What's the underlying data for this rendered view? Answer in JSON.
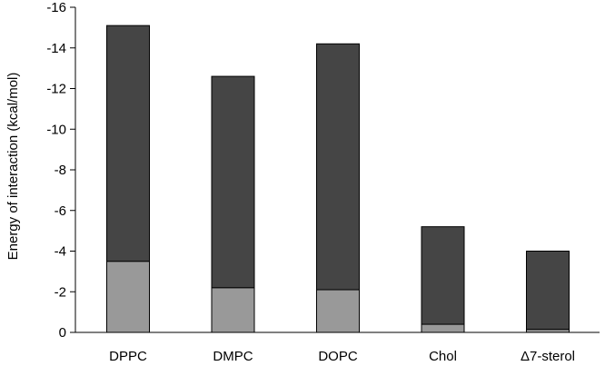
{
  "chart_data": {
    "type": "bar",
    "stacked": true,
    "title": "",
    "xlabel": "",
    "ylabel": "Energy of interaction (kcal/mol)",
    "ylim": [
      0,
      -16
    ],
    "yticks": [
      0,
      -2,
      -4,
      -6,
      -8,
      -10,
      -12,
      -14,
      -16
    ],
    "ytick_labels": [
      "0",
      "-2",
      "-4",
      "-6",
      "-8",
      "-10",
      "-12",
      "-14",
      "-16"
    ],
    "categories": [
      "DPPC",
      "DMPC",
      "DOPC",
      "Chol",
      "Δ7-sterol"
    ],
    "series": [
      {
        "values": [
          -3.5,
          -2.2,
          -2.1,
          -0.4,
          -0.15
        ],
        "color": "#999999"
      },
      {
        "values": [
          -11.6,
          -10.4,
          -12.1,
          -4.8,
          -3.85
        ],
        "color": "#454545"
      }
    ],
    "grid": false,
    "legend": "none"
  }
}
